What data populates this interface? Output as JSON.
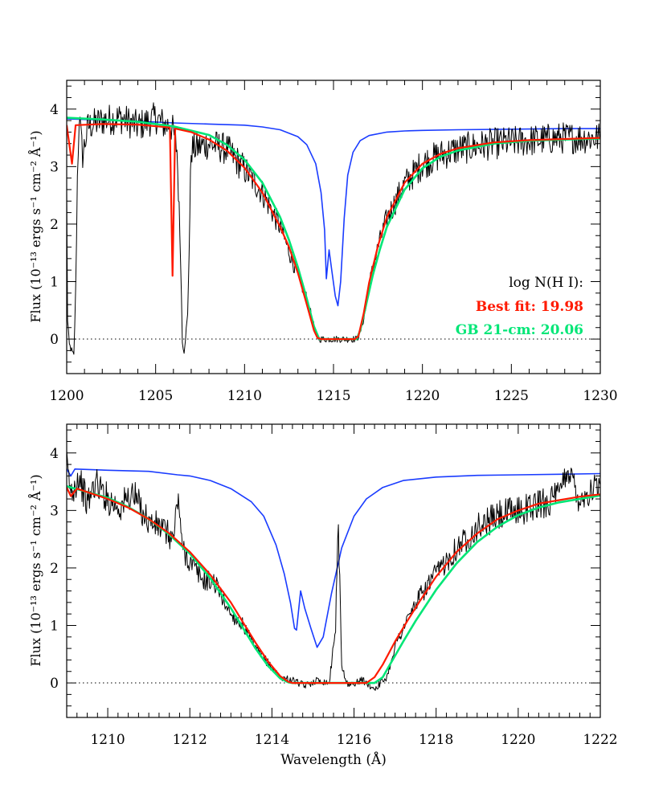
{
  "chart_data": [
    {
      "type": "line",
      "xlim": [
        1200,
        1230
      ],
      "ylim": [
        -0.6,
        4.5
      ],
      "xticks": [
        "1200",
        "1205",
        "1210",
        "1215",
        "1220",
        "1225",
        "1230"
      ],
      "yticks": [
        "0",
        "1",
        "2",
        "3",
        "4"
      ],
      "ylabel": "Flux (10⁻¹³ ergs s⁻¹ cm⁻² Å⁻¹)",
      "xlabel": "",
      "legend": {
        "title": "log N(H I):",
        "best_fit": "Best fit: 19.98",
        "gb_21cm": "GB 21-cm: 20.06"
      },
      "zero_line": 0,
      "colors": {
        "observed": "#000000",
        "best_fit": "#ff1a00",
        "gb_21cm": "#00e676",
        "intrinsic": "#1a3cff"
      },
      "series": [
        {
          "key": "intrinsic",
          "x": [
            1200,
            1202,
            1204,
            1206,
            1208,
            1210,
            1211,
            1212,
            1213,
            1213.5,
            1214,
            1214.3,
            1214.5,
            1214.6,
            1214.75,
            1214.9,
            1215.1,
            1215.25,
            1215.4,
            1215.6,
            1215.8,
            1216.1,
            1216.5,
            1217,
            1218,
            1219,
            1220,
            1222,
            1225,
            1228,
            1230
          ],
          "y": [
            3.83,
            3.81,
            3.79,
            3.76,
            3.74,
            3.72,
            3.69,
            3.64,
            3.52,
            3.38,
            3.05,
            2.55,
            1.9,
            1.05,
            1.55,
            1.2,
            0.75,
            0.58,
            1.0,
            2.1,
            2.85,
            3.25,
            3.45,
            3.54,
            3.6,
            3.62,
            3.63,
            3.64,
            3.65,
            3.66,
            3.66
          ]
        },
        {
          "key": "best_fit",
          "x": [
            1200,
            1200.3,
            1200.5,
            1202,
            1204,
            1205.8,
            1205.95,
            1206.1,
            1207,
            1208,
            1209,
            1210,
            1211,
            1212,
            1212.5,
            1213,
            1213.5,
            1213.9,
            1214.1,
            1214.3,
            1216.2,
            1216.4,
            1216.7,
            1217,
            1217.5,
            1218,
            1219,
            1220,
            1221,
            1222,
            1224,
            1226,
            1228,
            1230
          ],
          "y": [
            3.72,
            3.05,
            3.72,
            3.74,
            3.73,
            3.68,
            1.1,
            3.66,
            3.6,
            3.47,
            3.28,
            2.98,
            2.55,
            1.95,
            1.6,
            1.15,
            0.6,
            0.15,
            0.02,
            0,
            0,
            0.05,
            0.45,
            0.98,
            1.62,
            2.12,
            2.72,
            3.05,
            3.22,
            3.32,
            3.42,
            3.46,
            3.48,
            3.5
          ]
        },
        {
          "key": "gb_21cm",
          "x": [
            1200,
            1202,
            1204,
            1206,
            1208,
            1209,
            1210,
            1211,
            1212,
            1212.5,
            1213,
            1213.5,
            1213.9,
            1214.2,
            1216.3,
            1216.5,
            1216.8,
            1217.2,
            1217.6,
            1218,
            1219,
            1220,
            1221,
            1222,
            1224,
            1226,
            1228,
            1230
          ],
          "y": [
            3.85,
            3.82,
            3.78,
            3.7,
            3.55,
            3.38,
            3.12,
            2.72,
            2.12,
            1.72,
            1.25,
            0.7,
            0.22,
            0,
            0,
            0.15,
            0.55,
            1.1,
            1.55,
            1.95,
            2.6,
            2.97,
            3.17,
            3.28,
            3.4,
            3.45,
            3.47,
            3.49
          ]
        },
        {
          "key": "observed",
          "x": [
            1200,
            1200.05,
            1200.15,
            1200.4,
            1200.5,
            1200.6,
            1200.7,
            1200.8,
            1200.9,
            1201.2,
            1202,
            1203,
            1204,
            1205,
            1205.6,
            1205.8,
            1206.0,
            1206.2,
            1206.4,
            1206.5,
            1206.6,
            1206.8,
            1207,
            1208,
            1209,
            1210,
            1211,
            1212,
            1213,
            1213.5,
            1213.8,
            1214,
            1214.2,
            1214.5,
            1215,
            1215.5,
            1216,
            1216.3,
            1216.5,
            1216.8,
            1217,
            1217.5,
            1218,
            1219,
            1220,
            1221,
            1222,
            1224,
            1226,
            1228,
            1230
          ],
          "y": [
            2.5,
            0.3,
            -0.1,
            -0.3,
            0.8,
            2.8,
            3.9,
            3.5,
            3.2,
            3.7,
            3.8,
            3.85,
            3.7,
            3.85,
            3.7,
            3.75,
            3.6,
            3.3,
            1.5,
            -0.05,
            -0.2,
            0.4,
            3.3,
            3.4,
            3.3,
            2.95,
            2.55,
            1.95,
            1.1,
            0.7,
            0.35,
            0.1,
            0,
            0,
            0,
            0,
            0,
            0,
            0.1,
            0.5,
            0.95,
            1.6,
            2.1,
            2.7,
            3.05,
            3.2,
            3.3,
            3.4,
            3.45,
            3.5,
            3.5
          ]
        }
      ]
    },
    {
      "type": "line",
      "xlim": [
        1209,
        1222
      ],
      "ylim": [
        -0.6,
        4.5
      ],
      "xticks": [
        "1210",
        "1212",
        "1214",
        "1216",
        "1218",
        "1220",
        "1222"
      ],
      "yticks": [
        "0",
        "1",
        "2",
        "3",
        "4"
      ],
      "ylabel": "Flux (10⁻¹³ ergs s⁻¹ cm⁻² Å⁻¹)",
      "xlabel": "Wavelength (Å)",
      "zero_line": 0,
      "colors": {
        "observed": "#000000",
        "best_fit": "#ff1a00",
        "gb_21cm": "#00e676",
        "intrinsic": "#1a3cff"
      },
      "series": [
        {
          "key": "intrinsic",
          "x": [
            1209,
            1209.1,
            1209.2,
            1210,
            1211,
            1211.7,
            1212,
            1212.5,
            1213,
            1213.5,
            1213.8,
            1214.1,
            1214.3,
            1214.45,
            1214.55,
            1214.6,
            1214.7,
            1214.8,
            1214.95,
            1215.1,
            1215.25,
            1215.45,
            1215.7,
            1216,
            1216.3,
            1216.7,
            1217.2,
            1218,
            1219,
            1220,
            1221,
            1222
          ],
          "y": [
            3.72,
            3.6,
            3.72,
            3.7,
            3.68,
            3.62,
            3.6,
            3.52,
            3.38,
            3.15,
            2.9,
            2.4,
            1.9,
            1.4,
            0.95,
            0.92,
            1.6,
            1.3,
            0.95,
            0.62,
            0.8,
            1.55,
            2.35,
            2.9,
            3.2,
            3.4,
            3.52,
            3.58,
            3.61,
            3.62,
            3.63,
            3.64
          ]
        },
        {
          "key": "best_fit",
          "x": [
            1209,
            1209.1,
            1209.25,
            1210,
            1210.5,
            1211,
            1211.5,
            1212,
            1212.5,
            1213,
            1213.3,
            1213.6,
            1213.9,
            1214.2,
            1214.4,
            1214.5,
            1216.3,
            1216.5,
            1216.7,
            1217,
            1217.3,
            1217.6,
            1218,
            1218.5,
            1219,
            1219.5,
            1220,
            1220.5,
            1221,
            1221.5,
            1222
          ],
          "y": [
            3.4,
            3.25,
            3.38,
            3.2,
            3.05,
            2.85,
            2.6,
            2.28,
            1.88,
            1.4,
            1.05,
            0.7,
            0.38,
            0.12,
            0.02,
            0,
            0,
            0.1,
            0.32,
            0.72,
            1.08,
            1.42,
            1.85,
            2.28,
            2.6,
            2.85,
            3.0,
            3.12,
            3.18,
            3.24,
            3.28
          ]
        },
        {
          "key": "gb_21cm",
          "x": [
            1209,
            1210,
            1210.5,
            1211,
            1211.5,
            1212,
            1212.5,
            1213,
            1213.3,
            1213.6,
            1213.9,
            1214.2,
            1214.4,
            1214.5,
            1216.5,
            1216.7,
            1216.9,
            1217.2,
            1217.5,
            1218,
            1218.5,
            1219,
            1219.5,
            1220,
            1220.5,
            1221,
            1221.5,
            1222
          ],
          "y": [
            3.42,
            3.22,
            3.06,
            2.85,
            2.58,
            2.25,
            1.82,
            1.3,
            0.95,
            0.6,
            0.3,
            0.08,
            0.01,
            0,
            0,
            0.1,
            0.35,
            0.72,
            1.08,
            1.62,
            2.08,
            2.45,
            2.72,
            2.92,
            3.05,
            3.14,
            3.2,
            3.26
          ]
        },
        {
          "key": "observed",
          "x": [
            1209,
            1209.1,
            1209.3,
            1209.5,
            1209.7,
            1210,
            1210.3,
            1210.6,
            1211,
            1211.3,
            1211.6,
            1211.72,
            1211.8,
            1212,
            1212.3,
            1212.6,
            1213,
            1213.3,
            1213.6,
            1213.9,
            1214.2,
            1214.5,
            1214.8,
            1215.1,
            1215.4,
            1215.55,
            1215.62,
            1215.7,
            1215.85,
            1216.2,
            1216.5,
            1216.8,
            1217,
            1217.3,
            1217.6,
            1218,
            1218.5,
            1219,
            1219.5,
            1220,
            1220.5,
            1221,
            1221.2,
            1221.5,
            1222
          ],
          "y": [
            3.8,
            3.3,
            3.6,
            3.1,
            3.5,
            3.2,
            3.05,
            3.3,
            2.8,
            2.7,
            2.5,
            3.3,
            2.4,
            2.1,
            1.8,
            1.75,
            1.2,
            1.0,
            0.6,
            0.35,
            0.1,
            0.05,
            -0.05,
            0.05,
            0,
            1.0,
            2.75,
            0.3,
            -0.05,
            0.05,
            -0.1,
            0.1,
            0.65,
            1.1,
            1.5,
            1.9,
            2.35,
            2.7,
            2.9,
            3.0,
            3.1,
            3.25,
            3.75,
            3.2,
            3.45
          ]
        }
      ]
    }
  ]
}
